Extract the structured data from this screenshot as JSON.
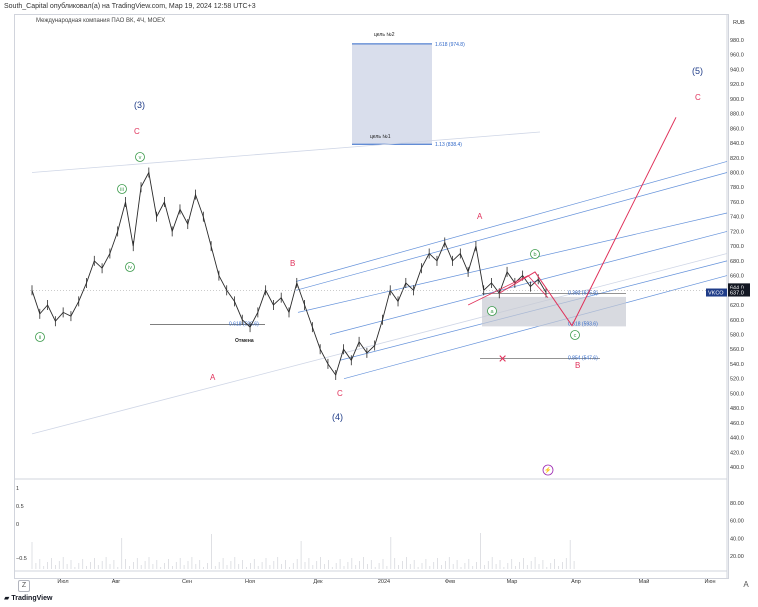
{
  "header_text": "South_Capital опубликовал(а) на TradingView.com, Мар 19, 2024 12:58 UTC+3",
  "symbol_title": "Международная компания ПАО ВК, 4Ч, MOEX",
  "footer_logo": "TradingView",
  "colors": {
    "bull": "#2b2b2b",
    "blue_wave": "#1f3c88",
    "red_wave": "#e0325b",
    "green_wave": "#3a9a4a",
    "channel": "#4a7fd4",
    "zone": "#c8cbd3",
    "target_box": "#d9deec",
    "last_price_bg": "#131722",
    "ticker_bg": "#1f3c88"
  },
  "chart_data": {
    "type": "line",
    "title": "Международная компания ПАО ВК, 4Ч, MOEX",
    "currency": "RUB",
    "ylim": [
      390,
      1000
    ],
    "yticks": [
      400,
      420,
      440,
      460,
      480,
      500,
      520,
      540,
      560,
      580,
      600,
      620,
      640,
      660,
      680,
      700,
      720,
      740,
      760,
      780,
      800,
      820,
      840,
      860,
      880,
      900,
      920,
      940,
      960,
      980
    ],
    "xtick_labels": [
      "Июл",
      "Авг",
      "Сен",
      "Ноя",
      "Дек",
      "2024",
      "Фев",
      "Мар",
      "Апр",
      "Май",
      "Июн"
    ],
    "price_series": [
      {
        "t": 0,
        "v": 640
      },
      {
        "t": 1,
        "v": 608
      },
      {
        "t": 2,
        "v": 620
      },
      {
        "t": 3,
        "v": 598
      },
      {
        "t": 4,
        "v": 610
      },
      {
        "t": 5,
        "v": 605
      },
      {
        "t": 6,
        "v": 625
      },
      {
        "t": 7,
        "v": 650
      },
      {
        "t": 8,
        "v": 680
      },
      {
        "t": 9,
        "v": 670
      },
      {
        "t": 10,
        "v": 690
      },
      {
        "t": 11,
        "v": 720
      },
      {
        "t": 12,
        "v": 760
      },
      {
        "t": 13,
        "v": 700
      },
      {
        "t": 14,
        "v": 780
      },
      {
        "t": 15,
        "v": 800
      },
      {
        "t": 16,
        "v": 740
      },
      {
        "t": 17,
        "v": 760
      },
      {
        "t": 18,
        "v": 720
      },
      {
        "t": 19,
        "v": 750
      },
      {
        "t": 20,
        "v": 730
      },
      {
        "t": 21,
        "v": 770
      },
      {
        "t": 22,
        "v": 740
      },
      {
        "t": 23,
        "v": 700
      },
      {
        "t": 24,
        "v": 660
      },
      {
        "t": 25,
        "v": 640
      },
      {
        "t": 26,
        "v": 625
      },
      {
        "t": 27,
        "v": 600
      },
      {
        "t": 28,
        "v": 590
      },
      {
        "t": 29,
        "v": 610
      },
      {
        "t": 30,
        "v": 640
      },
      {
        "t": 31,
        "v": 620
      },
      {
        "t": 32,
        "v": 630
      },
      {
        "t": 33,
        "v": 610
      },
      {
        "t": 34,
        "v": 650
      },
      {
        "t": 35,
        "v": 620
      },
      {
        "t": 36,
        "v": 590
      },
      {
        "t": 37,
        "v": 560
      },
      {
        "t": 38,
        "v": 540
      },
      {
        "t": 39,
        "v": 525
      },
      {
        "t": 40,
        "v": 560
      },
      {
        "t": 41,
        "v": 545
      },
      {
        "t": 42,
        "v": 570
      },
      {
        "t": 43,
        "v": 555
      },
      {
        "t": 44,
        "v": 565
      },
      {
        "t": 45,
        "v": 600
      },
      {
        "t": 46,
        "v": 640
      },
      {
        "t": 47,
        "v": 625
      },
      {
        "t": 48,
        "v": 650
      },
      {
        "t": 49,
        "v": 640
      },
      {
        "t": 50,
        "v": 670
      },
      {
        "t": 51,
        "v": 690
      },
      {
        "t": 52,
        "v": 680
      },
      {
        "t": 53,
        "v": 705
      },
      {
        "t": 54,
        "v": 680
      },
      {
        "t": 55,
        "v": 690
      },
      {
        "t": 56,
        "v": 665
      },
      {
        "t": 57,
        "v": 700
      },
      {
        "t": 58,
        "v": 640
      },
      {
        "t": 59,
        "v": 650
      },
      {
        "t": 60,
        "v": 636
      },
      {
        "t": 61,
        "v": 665
      },
      {
        "t": 62,
        "v": 650
      },
      {
        "t": 63,
        "v": 660
      },
      {
        "t": 64,
        "v": 645
      },
      {
        "t": 65,
        "v": 655
      },
      {
        "t": 66,
        "v": 637
      }
    ],
    "price_labels": {
      "current": "644.0",
      "last": "637.0",
      "ticker": "VKCO"
    },
    "fib_levels": [
      {
        "label": "1.618 (974.8)",
        "value": 974.8
      },
      {
        "label": "1.13 (838.4)",
        "value": 838.4
      },
      {
        "label": "0.382 (635.8)",
        "value": 635.8
      },
      {
        "label": "0.618 (593.6)",
        "value": 593.6
      },
      {
        "label": "0.854 (547.6)",
        "value": 547.6
      },
      {
        "label": "0.618 (593.6)",
        "value": 593.6
      }
    ],
    "annotations": {
      "target2": "цель №2",
      "target1": "цель №1",
      "cancel": "Отмена",
      "wave_blue": [
        "(3)",
        "(4)",
        "(5)"
      ],
      "wave_red": [
        "C",
        "B",
        "A",
        "C",
        "A",
        "B",
        "C"
      ],
      "wave_green": [
        "v",
        "iii",
        "iv",
        "ii",
        "b",
        "a",
        "c"
      ]
    },
    "indicator": {
      "ylim": [
        -1,
        100
      ],
      "yticks_right": [
        "80.00",
        "60.00",
        "40.00",
        "20.00"
      ],
      "yticks_left": [
        "1",
        "0.5",
        "0",
        "−0.5"
      ]
    }
  }
}
